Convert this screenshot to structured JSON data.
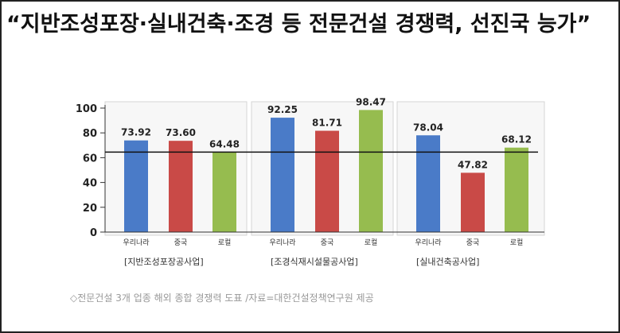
{
  "headline": "“지반조성포장·실내건축·조경 등 전문건설 경쟁력, 선진국 능가”",
  "caption": "◇전문건설 3개 업종 해외 종합 경쟁력 도표 /자료=대한건설정책연구원 제공",
  "chart_data": {
    "type": "bar",
    "ylim": [
      0,
      100
    ],
    "yticks": [
      0,
      20,
      40,
      60,
      80,
      100
    ],
    "reference_line": 64.48,
    "grid": false,
    "panels": [
      {
        "label": "[지반조성포장공사업]",
        "categories": [
          "우리나라",
          "중국",
          "로컬"
        ],
        "values": [
          73.92,
          73.6,
          64.48
        ],
        "value_labels": [
          "73.92",
          "73.60",
          "64.48"
        ]
      },
      {
        "label": "[조경식재시설물공사업]",
        "categories": [
          "우리나라",
          "중국",
          "로컬"
        ],
        "values": [
          92.25,
          81.71,
          98.47
        ],
        "value_labels": [
          "92.25",
          "81.71",
          "98.47"
        ]
      },
      {
        "label": "[실내건축공사업]",
        "categories": [
          "우리나라",
          "중국",
          "로컬"
        ],
        "values": [
          78.04,
          47.82,
          68.12
        ],
        "value_labels": [
          "78.04",
          "47.82",
          "68.12"
        ]
      }
    ],
    "colors": [
      "#4a7bc8",
      "#c94a47",
      "#96bc4f"
    ]
  }
}
